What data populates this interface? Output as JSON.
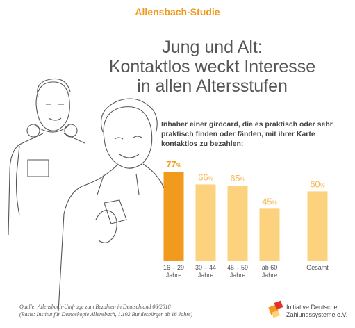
{
  "header": {
    "kicker": "Allensbach-Studie",
    "title_lines": [
      "Jung und Alt:",
      "Kontaktlos weckt Interesse",
      "in allen Altersstufen"
    ]
  },
  "chart_data": {
    "type": "bar",
    "subtitle": "Inhaber einer girocard, die es praktisch oder sehr praktisch finden oder fänden, mit ihrer Karte kontaktlos zu bezahlen:",
    "categories": [
      "16 – 29 Jahre",
      "30 – 44 Jahre",
      "45 – 59 Jahre",
      "ab 60 Jahre",
      "Gesamt"
    ],
    "values": [
      77,
      66,
      65,
      45,
      60
    ],
    "unit": "%",
    "colors": [
      "#f29a1e",
      "#fcd27e",
      "#fcd27e",
      "#fcd27e",
      "#fcd27e"
    ],
    "label_colors": [
      "#f29a1e",
      "#f6b955",
      "#f6b955",
      "#f6b955",
      "#f6b955"
    ]
  },
  "footer": {
    "source": "Quelle: Allensbach-Umfrage zum Bezahlen in Deutschland 06/2018",
    "basis": "(Basis: Institut für Demoskopie Allensbach, 1.192 Bundesbürger ab 16 Jahre)",
    "logo_lines": [
      "Initiative Deutsche",
      "Zahlungssysteme e.V."
    ]
  }
}
